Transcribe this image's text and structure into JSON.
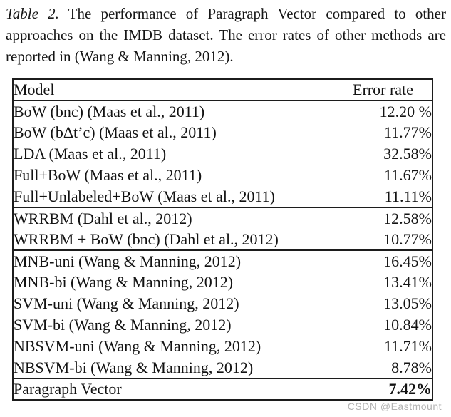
{
  "caption": {
    "label": "Table 2.",
    "text": " The performance of Paragraph Vector compared to other approaches on the IMDB dataset. The error rates of other methods are reported in (Wang & Manning, 2012)."
  },
  "table": {
    "header": {
      "model": "Model",
      "error_rate": "Error rate"
    },
    "groups": [
      {
        "rows": [
          {
            "model": "BoW (bnc) (Maas et al., 2011)",
            "error_rate": "12.20 %"
          },
          {
            "model": "BoW (bΔt’c) (Maas et al., 2011)",
            "error_rate": "11.77%"
          },
          {
            "model": "LDA (Maas et al., 2011)",
            "error_rate": "32.58%"
          },
          {
            "model": "Full+BoW (Maas et al., 2011)",
            "error_rate": "11.67%"
          },
          {
            "model": "Full+Unlabeled+BoW (Maas et al., 2011)",
            "error_rate": "11.11%"
          }
        ]
      },
      {
        "rows": [
          {
            "model": "WRRBM (Dahl et al., 2012)",
            "error_rate": "12.58%"
          },
          {
            "model": "WRRBM + BoW (bnc) (Dahl et al., 2012)",
            "error_rate": "10.77%"
          }
        ]
      },
      {
        "rows": [
          {
            "model": "MNB-uni (Wang & Manning, 2012)",
            "error_rate": "16.45%"
          },
          {
            "model": "MNB-bi (Wang & Manning, 2012)",
            "error_rate": "13.41%"
          },
          {
            "model": "SVM-uni (Wang & Manning, 2012)",
            "error_rate": "13.05%"
          },
          {
            "model": "SVM-bi (Wang & Manning, 2012)",
            "error_rate": "10.84%"
          },
          {
            "model": "NBSVM-uni (Wang & Manning, 2012)",
            "error_rate": "11.71%"
          },
          {
            "model": "NBSVM-bi (Wang & Manning, 2012)",
            "error_rate": "8.78%"
          }
        ]
      },
      {
        "rows": [
          {
            "model": "Paragraph Vector",
            "error_rate": "7.42%",
            "bold": true
          }
        ]
      }
    ]
  },
  "watermark": "CSDN @Eastmount"
}
